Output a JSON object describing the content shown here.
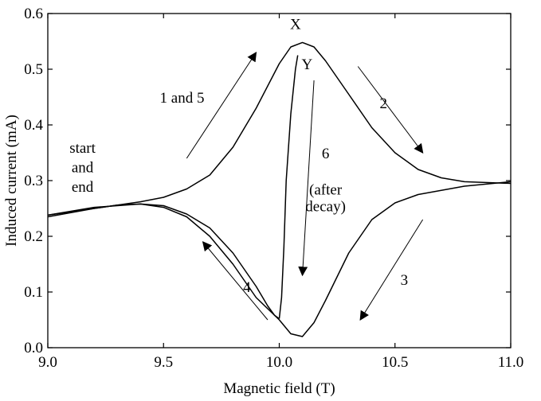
{
  "chart_data": {
    "type": "line",
    "xlabel": "Magnetic field (T)",
    "ylabel": "Induced current (mA)",
    "xlim": [
      9.0,
      11.0
    ],
    "ylim": [
      0.0,
      0.6
    ],
    "grid": false,
    "x_ticks": [
      {
        "value": 9.0,
        "label": "9.0"
      },
      {
        "value": 9.5,
        "label": "9.5"
      },
      {
        "value": 10.0,
        "label": "10.0"
      },
      {
        "value": 10.5,
        "label": "10.5"
      },
      {
        "value": 11.0,
        "label": "11.0"
      }
    ],
    "y_ticks": [
      {
        "value": 0.0,
        "label": "0.0"
      },
      {
        "value": 0.1,
        "label": "0.1"
      },
      {
        "value": 0.2,
        "label": "0.2"
      },
      {
        "value": 0.3,
        "label": "0.3"
      },
      {
        "value": 0.4,
        "label": "0.4"
      },
      {
        "value": 0.5,
        "label": "0.5"
      },
      {
        "value": 0.6,
        "label": "0.6"
      }
    ],
    "series": [
      {
        "x": [
          9.0,
          9.2,
          9.4,
          9.5,
          9.6,
          9.7,
          9.8,
          9.9,
          10.0,
          10.05,
          10.1,
          10.15,
          10.2,
          10.3,
          10.4,
          10.5,
          10.6,
          10.7,
          10.8,
          11.0
        ],
        "y": [
          0.238,
          0.25,
          0.262,
          0.27,
          0.285,
          0.31,
          0.36,
          0.43,
          0.51,
          0.54,
          0.548,
          0.54,
          0.515,
          0.455,
          0.395,
          0.35,
          0.32,
          0.305,
          0.298,
          0.295
        ]
      },
      {
        "x": [
          11.0,
          10.8,
          10.6,
          10.5,
          10.4,
          10.3,
          10.2,
          10.15,
          10.1,
          10.05,
          10.0,
          9.95,
          9.9,
          9.8,
          9.7,
          9.6,
          9.5,
          9.4,
          9.3,
          9.2,
          9.0
        ],
        "y": [
          0.298,
          0.29,
          0.275,
          0.26,
          0.23,
          0.17,
          0.085,
          0.045,
          0.02,
          0.025,
          0.05,
          0.07,
          0.09,
          0.15,
          0.2,
          0.235,
          0.252,
          0.258,
          0.256,
          0.25,
          0.235
        ]
      },
      {
        "x": [
          9.0,
          9.2,
          9.4,
          9.5,
          9.6,
          9.7,
          9.8,
          9.9,
          9.95,
          9.98,
          10.0
        ],
        "y": [
          0.238,
          0.252,
          0.258,
          0.255,
          0.24,
          0.215,
          0.17,
          0.11,
          0.075,
          0.058,
          0.052
        ]
      },
      {
        "x": [
          10.0,
          10.01,
          10.02,
          10.03,
          10.05,
          10.07,
          10.08
        ],
        "y": [
          0.052,
          0.09,
          0.18,
          0.3,
          0.42,
          0.5,
          0.525
        ]
      }
    ],
    "annotations": [
      {
        "text": "X",
        "x": 10.07,
        "y": 0.572
      },
      {
        "text": "Y",
        "x": 10.12,
        "y": 0.5
      },
      {
        "text": "1 and 5",
        "x": 9.58,
        "y": 0.44
      },
      {
        "text": "2",
        "x": 10.45,
        "y": 0.43
      },
      {
        "text": "start",
        "x": 9.15,
        "y": 0.35
      },
      {
        "text": "and",
        "x": 9.15,
        "y": 0.315
      },
      {
        "text": "end",
        "x": 9.15,
        "y": 0.28
      },
      {
        "text": "6",
        "x": 10.2,
        "y": 0.34
      },
      {
        "text": "(after",
        "x": 10.2,
        "y": 0.275
      },
      {
        "text": "decay)",
        "x": 10.2,
        "y": 0.245
      },
      {
        "text": "4",
        "x": 9.86,
        "y": 0.1
      },
      {
        "text": "3",
        "x": 10.54,
        "y": 0.113
      }
    ],
    "arrows": [
      {
        "from": [
          9.6,
          0.34
        ],
        "to": [
          9.9,
          0.53
        ]
      },
      {
        "from": [
          10.34,
          0.505
        ],
        "to": [
          10.62,
          0.35
        ]
      },
      {
        "from": [
          10.15,
          0.48
        ],
        "to": [
          10.1,
          0.13
        ]
      },
      {
        "from": [
          10.62,
          0.23
        ],
        "to": [
          10.35,
          0.05
        ]
      },
      {
        "from": [
          9.95,
          0.05
        ],
        "to": [
          9.67,
          0.19
        ]
      }
    ]
  }
}
